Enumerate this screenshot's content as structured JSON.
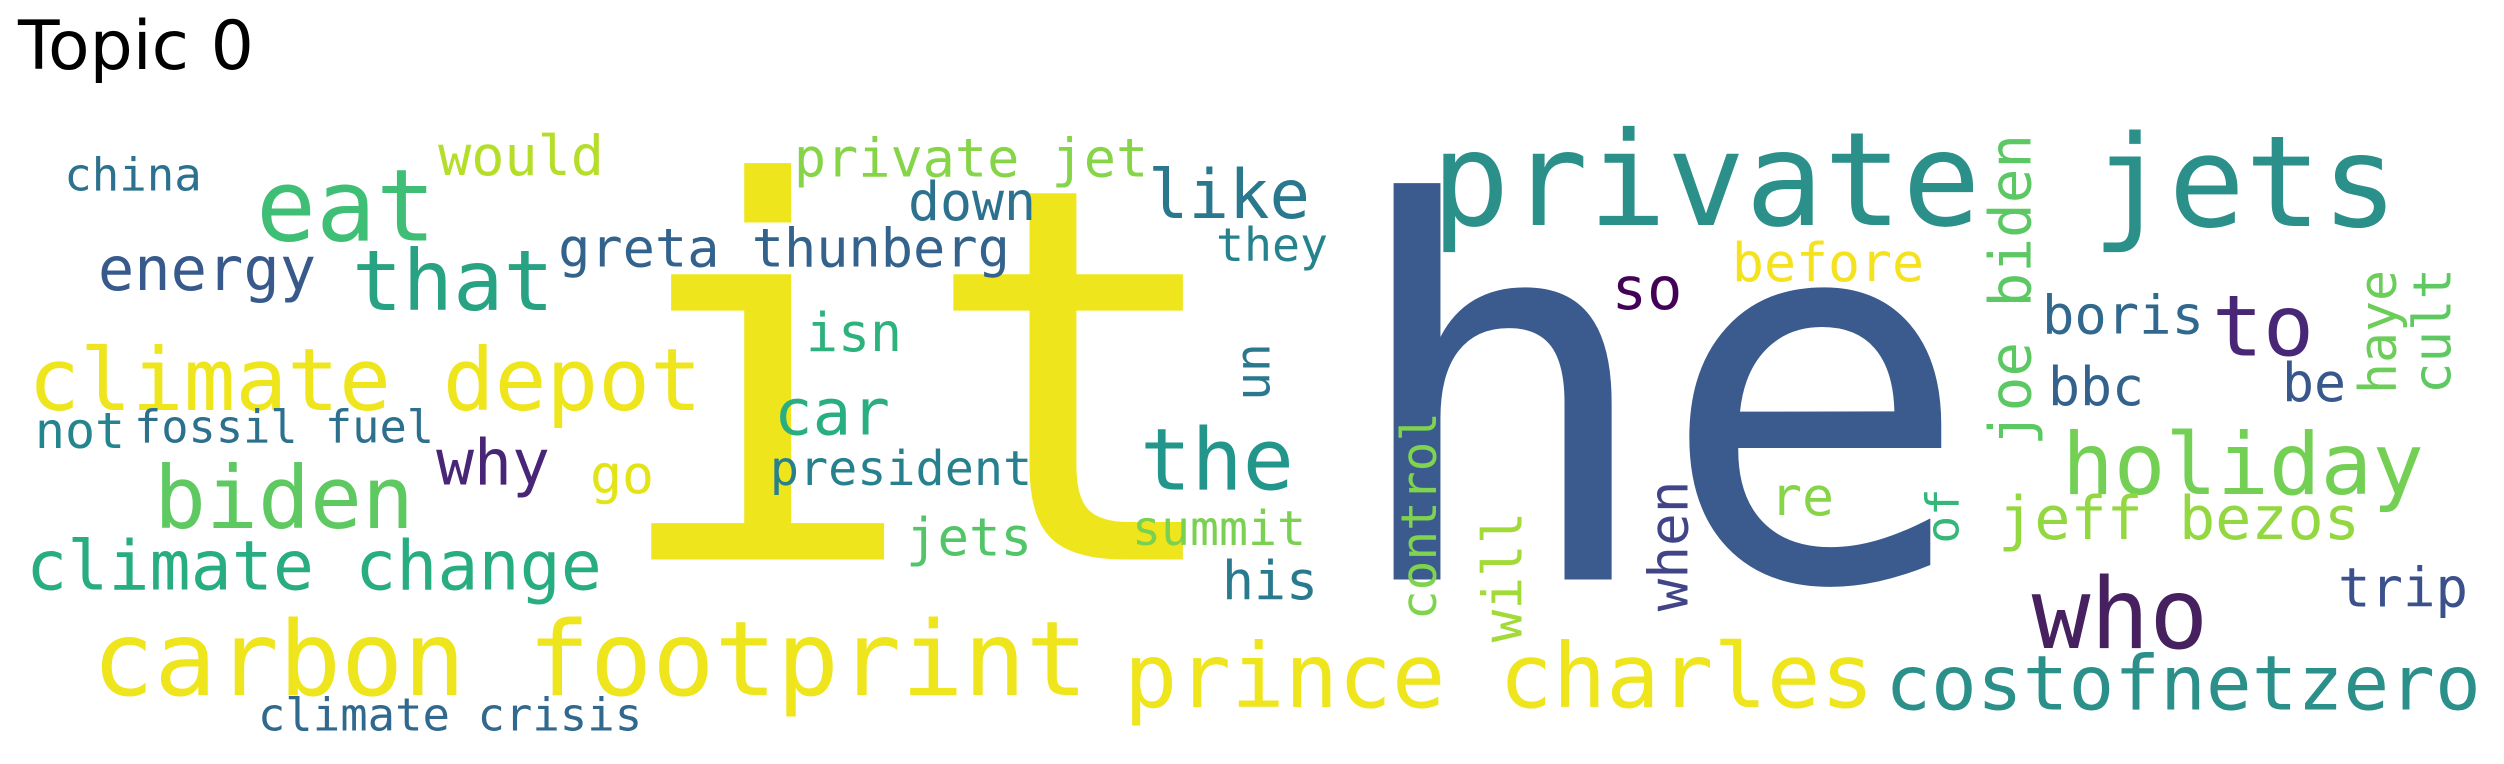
{
  "title": "Topic 0",
  "words": [
    {
      "text": "it",
      "color": "#efe51c"
    },
    {
      "text": "he",
      "color": "#3b5b8e"
    },
    {
      "text": "private",
      "color": "#2b8f8a"
    },
    {
      "text": "jets",
      "color": "#2b8f8a"
    },
    {
      "text": "carbon footprint",
      "color": "#efe51c"
    },
    {
      "text": "prince charles",
      "color": "#efe51c"
    },
    {
      "text": "costofnetzero",
      "color": "#2b8f8a"
    },
    {
      "text": "climate depot",
      "color": "#efe51c"
    },
    {
      "text": "eat",
      "color": "#3fbf76"
    },
    {
      "text": "that",
      "color": "#27a283"
    },
    {
      "text": "biden",
      "color": "#5ec961"
    },
    {
      "text": "climate change",
      "color": "#27ad81"
    },
    {
      "text": "holiday",
      "color": "#74d055"
    },
    {
      "text": "the",
      "color": "#22968b"
    },
    {
      "text": "who",
      "color": "#46205f"
    },
    {
      "text": "to",
      "color": "#482777"
    },
    {
      "text": "energy",
      "color": "#38598c"
    },
    {
      "text": "like",
      "color": "#2a788e"
    },
    {
      "text": "greta thunberg",
      "color": "#33628d"
    },
    {
      "text": "private jet",
      "color": "#86d549"
    },
    {
      "text": "would",
      "color": "#b5de2b"
    },
    {
      "text": "down",
      "color": "#2c728e"
    },
    {
      "text": "car",
      "color": "#28ae80"
    },
    {
      "text": "jeff bezos",
      "color": "#93d741"
    },
    {
      "text": "joe biden",
      "color": "#5cc863"
    },
    {
      "text": "before",
      "color": "#f5e21f"
    },
    {
      "text": "isn",
      "color": "#2db27d"
    },
    {
      "text": "president",
      "color": "#27808e"
    },
    {
      "text": "why",
      "color": "#482576"
    },
    {
      "text": "so",
      "color": "#440256"
    },
    {
      "text": "boris",
      "color": "#31688e"
    },
    {
      "text": "bbc",
      "color": "#33638d"
    },
    {
      "text": "china",
      "color": "#2c718e"
    },
    {
      "text": "not",
      "color": "#25858e"
    },
    {
      "text": "fossil fuel",
      "color": "#2d708e"
    },
    {
      "text": "go",
      "color": "#e2e418"
    },
    {
      "text": "jets",
      "color": "#52c569"
    },
    {
      "text": "summit",
      "color": "#7ad151"
    },
    {
      "text": "his",
      "color": "#297a8e"
    },
    {
      "text": "they",
      "color": "#25838e"
    },
    {
      "text": "un",
      "color": "#2a778e"
    },
    {
      "text": "re",
      "color": "#86d549"
    },
    {
      "text": "of",
      "color": "#35b779"
    },
    {
      "text": "be",
      "color": "#38588c"
    },
    {
      "text": "haye",
      "color": "#6ccd5a"
    },
    {
      "text": "cult",
      "color": "#5ec962"
    },
    {
      "text": "trip",
      "color": "#3b518b"
    },
    {
      "text": "control",
      "color": "#7fd34e"
    },
    {
      "text": "will",
      "color": "#a2da37"
    },
    {
      "text": "when",
      "color": "#414487"
    },
    {
      "text": "climate crisis",
      "color": "#31688e"
    }
  ]
}
